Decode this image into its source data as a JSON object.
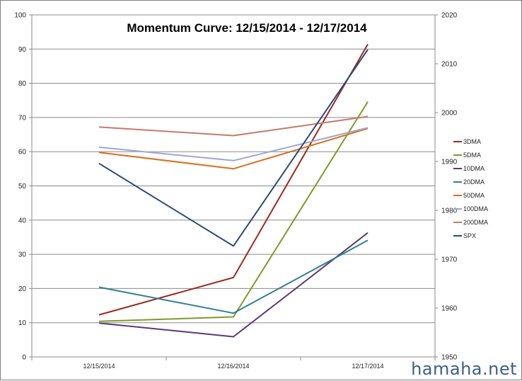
{
  "watermark": "hamaha.net",
  "chart_data": {
    "type": "line",
    "title": "Momentum Curve:  12/15/2014 - 12/17/2014",
    "categories": [
      "12/15/2014",
      "12/16/2014",
      "12/17/2014"
    ],
    "ylim": [
      0,
      100
    ],
    "yticks": [
      0,
      10,
      20,
      30,
      40,
      50,
      60,
      70,
      80,
      90,
      100
    ],
    "y2lim": [
      1950,
      2020
    ],
    "y2ticks": [
      1950,
      1960,
      1970,
      1980,
      1990,
      2000,
      2010,
      2020
    ],
    "grid": true,
    "legend_position": "right",
    "series": [
      {
        "name": "3DMA",
        "color": "#9c2a1c",
        "axis": "left",
        "values": [
          12.3,
          23.2,
          91.4
        ]
      },
      {
        "name": "5DMA",
        "color": "#7e9a2a",
        "axis": "left",
        "values": [
          10.4,
          11.7,
          74.6
        ]
      },
      {
        "name": "10DMA",
        "color": "#5b3a7a",
        "axis": "left",
        "values": [
          9.9,
          5.9,
          36.3
        ]
      },
      {
        "name": "20DMA",
        "color": "#2f7f92",
        "axis": "left",
        "values": [
          20.4,
          12.8,
          34.1
        ]
      },
      {
        "name": "50DMA",
        "color": "#d9701e",
        "axis": "left",
        "values": [
          59.8,
          55.0,
          66.8
        ]
      },
      {
        "name": "100DMA",
        "color": "#9ea6d2",
        "axis": "left",
        "values": [
          61.3,
          57.4,
          67.0
        ]
      },
      {
        "name": "200DMA",
        "color": "#c67b6e",
        "axis": "left",
        "values": [
          67.2,
          64.7,
          70.3
        ]
      },
      {
        "name": "SPX",
        "color": "#2a4a7a",
        "axis": "right",
        "values": [
          1989.6,
          1972.7,
          2012.9
        ]
      }
    ]
  }
}
